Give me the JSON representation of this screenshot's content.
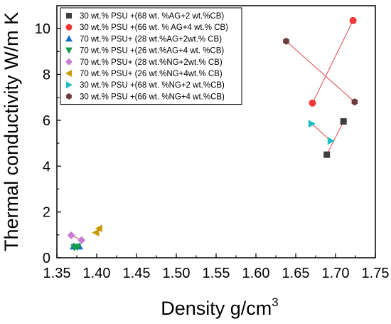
{
  "chart_data": {
    "type": "scatter",
    "title": "",
    "xlabel": "Density g/cm",
    "xlabel_superscript": "3",
    "ylabel": "Thermal conductivity W/m K",
    "xlim": [
      1.35,
      1.75
    ],
    "ylim": [
      0,
      11
    ],
    "x_ticks": [
      "1.35",
      "1.40",
      "1.45",
      "1.50",
      "1.55",
      "1.60",
      "1.65",
      "1.70",
      "1.75"
    ],
    "y_ticks": [
      "0",
      "2",
      "4",
      "6",
      "8",
      "10"
    ],
    "grid": false,
    "legend_position": "top-left",
    "series": [
      {
        "name": "30 wt.% PSU +(68 wt. %AG+2 wt.%CB)",
        "marker": "square",
        "color": "#3f3f3f",
        "connected": true,
        "points": [
          [
            1.689,
            4.5
          ],
          [
            1.71,
            5.95
          ]
        ]
      },
      {
        "name": "30 wt.% PSU +(66 wt. % AG+4 wt.% CB)",
        "marker": "circle",
        "color": "#f0383a",
        "connected": true,
        "points": [
          [
            1.671,
            6.75
          ],
          [
            1.722,
            10.35
          ]
        ]
      },
      {
        "name": "70 wt.% PSU+ (28 wt.%AG+2wt.% CB)",
        "marker": "triangle-up",
        "color": "#1a6dc9",
        "connected": true,
        "points": [
          [
            1.371,
            0.5
          ],
          [
            1.378,
            0.5
          ]
        ]
      },
      {
        "name": "70 wt.% PSU +(26 wt.%AG+4 wt. %CB)",
        "marker": "triangle-down",
        "color": "#159c4d",
        "connected": true,
        "points": [
          [
            1.372,
            0.45
          ],
          [
            1.376,
            0.47
          ]
        ]
      },
      {
        "name": "70 wt.% PSU+ (28 wt.%NG+2wt.% CB)",
        "marker": "diamond",
        "color": "#c77bd3",
        "connected": true,
        "points": [
          [
            1.368,
            0.98
          ],
          [
            1.381,
            0.77
          ]
        ]
      },
      {
        "name": "70 wt.% PSU+ (26 wt.%NG+4wt.% CB)",
        "marker": "triangle-left",
        "color": "#c99a07",
        "connected": true,
        "points": [
          [
            1.399,
            1.1
          ],
          [
            1.403,
            1.28
          ]
        ]
      },
      {
        "name": "30 wt.% PSU +(68 wt. %NG+2 wt.%CB)",
        "marker": "triangle-right",
        "color": "#1cbfc4",
        "connected": true,
        "points": [
          [
            1.67,
            5.85
          ],
          [
            1.694,
            5.1
          ]
        ]
      },
      {
        "name": "30 wt.% PSU +(66 wt. %NG+4 wt.%CB)",
        "marker": "hexagon",
        "color": "#6e3b3b",
        "connected": true,
        "points": [
          [
            1.638,
            9.45
          ],
          [
            1.724,
            6.8
          ]
        ]
      }
    ],
    "connector_color": "#e0474a"
  }
}
